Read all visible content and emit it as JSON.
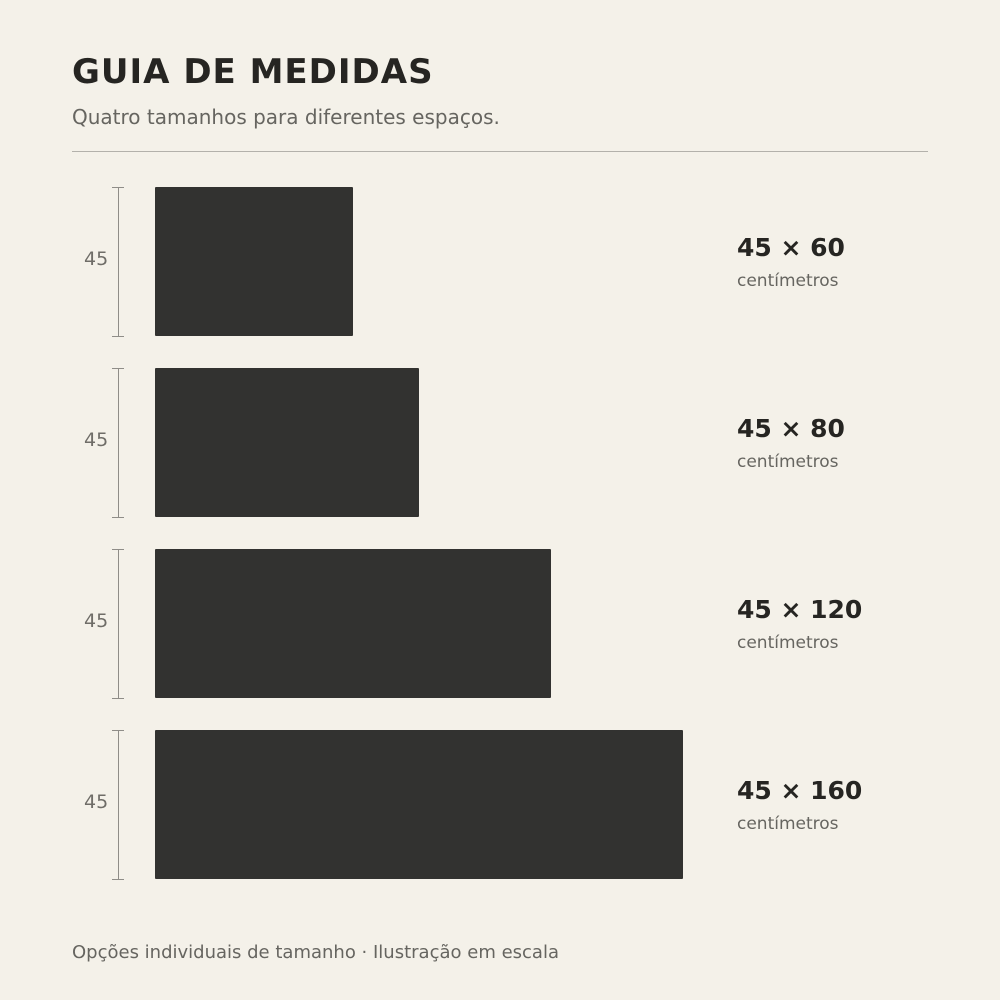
{
  "header": {
    "title": "GUIA DE MEDIDAS",
    "subtitle": "Quatro tamanhos para diferentes espaços."
  },
  "sizes": [
    {
      "height": "45",
      "label": "45 × 60",
      "unit": "centímetros",
      "width_cm": 60
    },
    {
      "height": "45",
      "label": "45 × 80",
      "unit": "centímetros",
      "width_cm": 80
    },
    {
      "height": "45",
      "label": "45 × 120",
      "unit": "centímetros",
      "width_cm": 120
    },
    {
      "height": "45",
      "label": "45 × 160",
      "unit": "centímetros",
      "width_cm": 160
    }
  ],
  "footer": {
    "note": "Opções individuais de tamanho · Ilustração em escala"
  },
  "colors": {
    "background": "#f4f1e9",
    "rug": "#323230",
    "text_primary": "#262522",
    "text_secondary": "#666560"
  }
}
